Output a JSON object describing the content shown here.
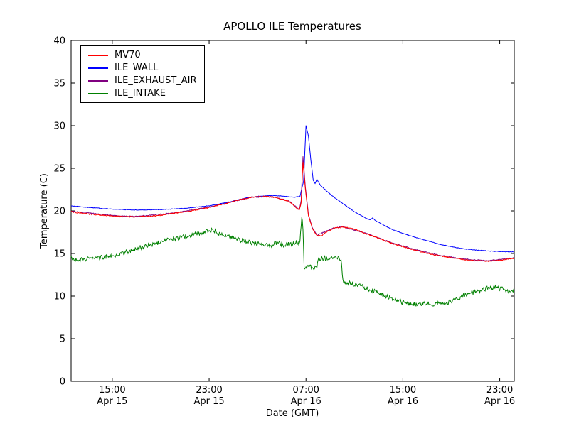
{
  "chart_data": {
    "type": "line",
    "title": "APOLLO ILE Temperatures",
    "xlabel": "Date (GMT)",
    "ylabel": "Temperature (C)",
    "ylim": [
      0,
      40
    ],
    "xlim": [
      11.6,
      48.2
    ],
    "x_unit": "hours since Apr 15 00:00 GMT",
    "grid": false,
    "legend_position": "upper left",
    "yticks": [
      0,
      5,
      10,
      15,
      20,
      25,
      30,
      35,
      40
    ],
    "xticks": [
      {
        "value": 15,
        "time": "15:00",
        "date": "Apr 15"
      },
      {
        "value": 23,
        "time": "23:00",
        "date": "Apr 15"
      },
      {
        "value": 31,
        "time": "07:00",
        "date": "Apr 16"
      },
      {
        "value": 39,
        "time": "15:00",
        "date": "Apr 16"
      },
      {
        "value": 47,
        "time": "23:00",
        "date": "Apr 16"
      }
    ],
    "draw_order": [
      2,
      1,
      0,
      3
    ],
    "series": [
      {
        "name": "MV70",
        "color": "#ff0000",
        "noise": 0.06,
        "points": [
          [
            11.6,
            19.9
          ],
          [
            12.5,
            19.7
          ],
          [
            14,
            19.5
          ],
          [
            15.5,
            19.35
          ],
          [
            17,
            19.3
          ],
          [
            18.5,
            19.4
          ],
          [
            20,
            19.7
          ],
          [
            21.5,
            20.0
          ],
          [
            23,
            20.4
          ],
          [
            24.5,
            20.9
          ],
          [
            25.5,
            21.3
          ],
          [
            26.5,
            21.6
          ],
          [
            27.5,
            21.7
          ],
          [
            28.3,
            21.6
          ],
          [
            29,
            21.4
          ],
          [
            29.6,
            21.1
          ],
          [
            30.1,
            20.5
          ],
          [
            30.45,
            20.1
          ],
          [
            30.6,
            20.9
          ],
          [
            30.75,
            25.8
          ],
          [
            30.95,
            22.5
          ],
          [
            31.2,
            19.5
          ],
          [
            31.5,
            18.0
          ],
          [
            31.9,
            17.1
          ],
          [
            32.3,
            17.1
          ],
          [
            32.8,
            17.6
          ],
          [
            33.3,
            17.95
          ],
          [
            34,
            18.1
          ],
          [
            34.6,
            18.0
          ],
          [
            35.3,
            17.7
          ],
          [
            36,
            17.3
          ],
          [
            37,
            16.8
          ],
          [
            38,
            16.25
          ],
          [
            39,
            15.8
          ],
          [
            40,
            15.4
          ],
          [
            41,
            15.0
          ],
          [
            42,
            14.75
          ],
          [
            43,
            14.5
          ],
          [
            44,
            14.3
          ],
          [
            45,
            14.15
          ],
          [
            46,
            14.1
          ],
          [
            47,
            14.2
          ],
          [
            47.8,
            14.35
          ],
          [
            48.2,
            14.45
          ]
        ]
      },
      {
        "name": "ILE_WALL",
        "color": "#0000ff",
        "noise": 0.03,
        "points": [
          [
            11.6,
            20.6
          ],
          [
            13,
            20.4
          ],
          [
            15,
            20.2
          ],
          [
            17,
            20.1
          ],
          [
            19,
            20.15
          ],
          [
            21,
            20.3
          ],
          [
            23,
            20.6
          ],
          [
            24.5,
            21.0
          ],
          [
            26,
            21.5
          ],
          [
            27,
            21.7
          ],
          [
            28,
            21.8
          ],
          [
            29,
            21.75
          ],
          [
            30,
            21.6
          ],
          [
            30.5,
            21.7
          ],
          [
            30.8,
            23.5
          ],
          [
            31.0,
            30.0
          ],
          [
            31.2,
            28.8
          ],
          [
            31.4,
            26.0
          ],
          [
            31.6,
            23.6
          ],
          [
            31.75,
            23.2
          ],
          [
            31.9,
            23.7
          ],
          [
            32.2,
            23.0
          ],
          [
            32.8,
            22.2
          ],
          [
            33.5,
            21.4
          ],
          [
            34.2,
            20.7
          ],
          [
            35,
            19.9
          ],
          [
            36,
            19.1
          ],
          [
            36.3,
            18.95
          ],
          [
            36.5,
            19.15
          ],
          [
            36.8,
            18.8
          ],
          [
            38,
            17.9
          ],
          [
            39,
            17.35
          ],
          [
            40,
            16.9
          ],
          [
            41,
            16.5
          ],
          [
            42,
            16.1
          ],
          [
            43,
            15.8
          ],
          [
            44,
            15.55
          ],
          [
            45,
            15.4
          ],
          [
            46,
            15.3
          ],
          [
            47,
            15.22
          ],
          [
            48.2,
            15.2
          ]
        ]
      },
      {
        "name": "ILE_EXHAUST_AIR",
        "color": "#800080",
        "noise": 0.05,
        "points": [
          [
            11.6,
            19.95
          ],
          [
            15.5,
            19.4
          ],
          [
            17,
            19.35
          ],
          [
            20,
            19.75
          ],
          [
            23,
            20.45
          ],
          [
            26.5,
            21.6
          ],
          [
            28.3,
            21.65
          ],
          [
            29.6,
            21.15
          ],
          [
            30.45,
            20.15
          ],
          [
            30.6,
            21.2
          ],
          [
            30.75,
            26.4
          ],
          [
            30.95,
            22.8
          ],
          [
            31.2,
            19.6
          ],
          [
            31.5,
            18.1
          ],
          [
            31.9,
            17.15
          ],
          [
            33.3,
            18.0
          ],
          [
            34,
            18.15
          ],
          [
            36,
            17.35
          ],
          [
            38,
            16.3
          ],
          [
            40,
            15.45
          ],
          [
            42,
            14.8
          ],
          [
            44,
            14.35
          ],
          [
            46,
            14.15
          ],
          [
            48.2,
            14.5
          ]
        ]
      },
      {
        "name": "ILE_INTAKE",
        "color": "#008000",
        "noise": 0.28,
        "points": [
          [
            11.6,
            14.4
          ],
          [
            12.3,
            14.3
          ],
          [
            13,
            14.35
          ],
          [
            14,
            14.5
          ],
          [
            15,
            14.7
          ],
          [
            16,
            15.1
          ],
          [
            17,
            15.5
          ],
          [
            18,
            16.0
          ],
          [
            19,
            16.4
          ],
          [
            20,
            16.7
          ],
          [
            21,
            17.0
          ],
          [
            22,
            17.3
          ],
          [
            22.7,
            17.6
          ],
          [
            23.3,
            17.8
          ],
          [
            23.8,
            17.4
          ],
          [
            24.5,
            17.0
          ],
          [
            25.2,
            16.7
          ],
          [
            26,
            16.4
          ],
          [
            26.8,
            16.1
          ],
          [
            27.3,
            16.2
          ],
          [
            28,
            15.9
          ],
          [
            28.6,
            16.3
          ],
          [
            29.2,
            16.0
          ],
          [
            29.8,
            16.1
          ],
          [
            30.2,
            16.3
          ],
          [
            30.5,
            16.2
          ],
          [
            30.65,
            19.4
          ],
          [
            30.75,
            18.0
          ],
          [
            30.85,
            13.3
          ],
          [
            31.2,
            13.45
          ],
          [
            31.6,
            13.3
          ],
          [
            31.9,
            13.5
          ],
          [
            32.0,
            14.3
          ],
          [
            32.5,
            14.45
          ],
          [
            33,
            14.35
          ],
          [
            33.5,
            14.5
          ],
          [
            33.9,
            14.3
          ],
          [
            34.05,
            11.7
          ],
          [
            34.5,
            11.5
          ],
          [
            35,
            11.4
          ],
          [
            35.7,
            11.1
          ],
          [
            36.4,
            10.7
          ],
          [
            37,
            10.3
          ],
          [
            37.7,
            9.9
          ],
          [
            38.3,
            9.6
          ],
          [
            39,
            9.3
          ],
          [
            39.7,
            9.1
          ],
          [
            40.3,
            9.0
          ],
          [
            41,
            9.15
          ],
          [
            41.6,
            9.0
          ],
          [
            42.2,
            9.3
          ],
          [
            42.8,
            9.25
          ],
          [
            43.4,
            9.6
          ],
          [
            44,
            10.0
          ],
          [
            44.7,
            10.4
          ],
          [
            45.4,
            10.7
          ],
          [
            46,
            10.9
          ],
          [
            46.6,
            11.0
          ],
          [
            47.2,
            10.8
          ],
          [
            47.7,
            10.5
          ],
          [
            48.2,
            10.6
          ]
        ]
      }
    ]
  }
}
